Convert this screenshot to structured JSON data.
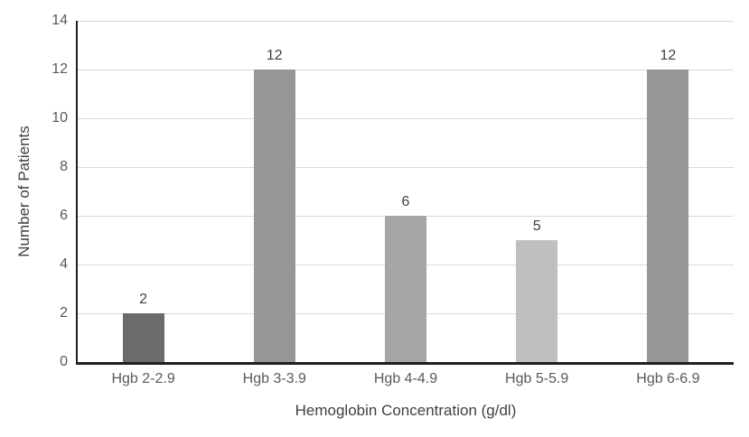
{
  "chart_data": {
    "type": "bar",
    "categories": [
      "Hgb 2-2.9",
      "Hgb 3-3.9",
      "Hgb 4-4.9",
      "Hgb 5-5.9",
      "Hgb 6-6.9"
    ],
    "values": [
      2,
      12,
      6,
      5,
      12
    ],
    "data_labels": [
      "2",
      "12",
      "6",
      "5",
      "12"
    ],
    "title": "",
    "xlabel": "Hemoglobin Concentration (g/dl)",
    "ylabel": "Number of Patients",
    "ylim": [
      0,
      14
    ],
    "yticks": [
      0,
      2,
      4,
      6,
      8,
      10,
      12,
      14
    ],
    "grid": "horizontal",
    "legend_position": "none",
    "bar_colors": [
      "#6b6b6b",
      "#969696",
      "#a6a6a6",
      "#bfbfbf",
      "#969696"
    ],
    "bar_patterns": [
      "solid",
      "solid",
      "dots",
      "solid",
      "solid"
    ],
    "colors": {
      "background": "#ffffff",
      "gridline": "#d9d9d9",
      "axis_line": "#1f1f1f",
      "tick_label": "#595959",
      "value_label": "#404040",
      "axis_title": "#404040"
    }
  }
}
